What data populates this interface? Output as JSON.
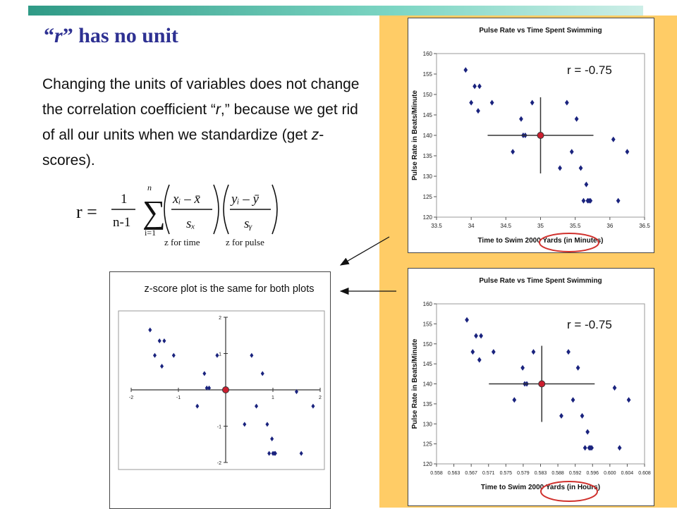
{
  "slide": {
    "title_quote_open": "“",
    "title_var": "r",
    "title_quote_close": "”",
    "title_rest": " has no unit",
    "body_part1": "Changing the units of variables does not change the correlation coefficient “",
    "body_var": "r",
    "body_part2": ",” because we get rid of all our units when we standardize (get ",
    "body_var2": "z",
    "body_part3": "-scores).",
    "r_label_top": "r = -0.75",
    "r_label_bottom": "r = -0.75",
    "z_caption": "z-score plot is the same for both plots"
  },
  "formula": {
    "lhs": "r =",
    "numerator": "1",
    "denominator": "n-1",
    "sum_top": "n",
    "sum_bottom": "i=1",
    "x_term_num": "xᵢ – x̄",
    "x_term_den": "sₓ",
    "y_term_num": "yᵢ – ȳ",
    "y_term_den": "sᵧ",
    "x_under": "z for time",
    "y_under": "z for pulse"
  },
  "colors": {
    "point": "#1a237e",
    "mean_point": "#cc1f2f",
    "highlight_circle": "#d0312d",
    "panel": "#ffcc66",
    "title": "#2e3192"
  },
  "chart_data": [
    {
      "type": "scatter",
      "title": "Pulse Rate vs Time Spent Swimming",
      "xlabel": "Time to Swim 2000 Yards (in Minutes)",
      "ylabel": "Pulse Rate in Beats/Minute",
      "xlim": [
        33.5,
        36.5
      ],
      "ylim": [
        120,
        160
      ],
      "xticks": [
        "33.5",
        "34",
        "34.5",
        "35",
        "35.5",
        "36",
        "36.5"
      ],
      "yticks": [
        "120",
        "125",
        "130",
        "135",
        "140",
        "145",
        "150",
        "155",
        "160"
      ],
      "grid": false,
      "mean_point": {
        "x": 35.0,
        "y": 140
      },
      "x": [
        33.92,
        34.0,
        34.05,
        34.12,
        34.1,
        34.3,
        34.6,
        34.72,
        34.75,
        34.78,
        34.88,
        35.28,
        35.38,
        35.45,
        35.52,
        35.58,
        35.62,
        35.66,
        35.68,
        35.7,
        35.72,
        36.05,
        36.12,
        36.25
      ],
      "y": [
        156,
        148,
        152,
        152,
        146,
        148,
        136,
        144,
        140,
        140,
        148,
        132,
        148,
        136,
        144,
        132,
        124,
        128,
        124,
        124,
        124,
        139,
        124,
        136
      ]
    },
    {
      "type": "scatter",
      "title": "Pulse Rate vs Time Spent Swimming",
      "xlabel": "Time to Swim 2000 Yards (in Hours)",
      "ylabel": "Pulse Rate in Beats/Minute",
      "xlim": [
        0.558,
        0.608
      ],
      "ylim": [
        120,
        160
      ],
      "xticks": [
        "0.558",
        "0.563",
        "0.567",
        "0.571",
        "0.575",
        "0.579",
        "0.583",
        "0.588",
        "0.592",
        "0.596",
        "0.600",
        "0.604",
        "0.608"
      ],
      "yticks": [
        "120",
        "125",
        "130",
        "135",
        "140",
        "145",
        "150",
        "155",
        "160"
      ],
      "grid": false,
      "mean_point": {
        "x": 0.5833,
        "y": 140
      },
      "x": [
        0.5653,
        0.5667,
        0.5675,
        0.5687,
        0.5683,
        0.5717,
        0.5767,
        0.5787,
        0.5792,
        0.5797,
        0.5813,
        0.588,
        0.5897,
        0.5908,
        0.592,
        0.593,
        0.5937,
        0.5943,
        0.5947,
        0.595,
        0.5953,
        0.6008,
        0.602,
        0.6042
      ],
      "y": [
        156,
        148,
        152,
        152,
        146,
        148,
        136,
        144,
        140,
        140,
        148,
        132,
        148,
        136,
        144,
        132,
        124,
        128,
        124,
        124,
        124,
        139,
        124,
        136
      ]
    },
    {
      "type": "scatter",
      "xlim": [
        -2,
        2
      ],
      "ylim": [
        -2,
        2
      ],
      "xticks": [
        "-2",
        "-1",
        "1",
        "2"
      ],
      "yticks": [
        "2",
        "1",
        "-1",
        "-2"
      ],
      "grid": false,
      "mean_point": {
        "x": 0,
        "y": 0
      },
      "x": [
        -1.6,
        -1.5,
        -1.4,
        -1.3,
        -1.35,
        -1.1,
        -0.6,
        -0.45,
        -0.4,
        -0.35,
        -0.18,
        0.4,
        0.55,
        0.65,
        0.78,
        0.88,
        0.92,
        0.98,
        1.0,
        1.03,
        1.05,
        1.5,
        1.6,
        1.85
      ],
      "y": [
        1.65,
        0.95,
        1.35,
        1.35,
        0.65,
        0.95,
        -0.45,
        0.45,
        0.05,
        0.05,
        0.95,
        -0.95,
        0.95,
        -0.45,
        0.45,
        -0.95,
        -1.75,
        -1.35,
        -1.75,
        -1.75,
        -1.75,
        -0.05,
        -1.75,
        -0.45
      ]
    }
  ]
}
